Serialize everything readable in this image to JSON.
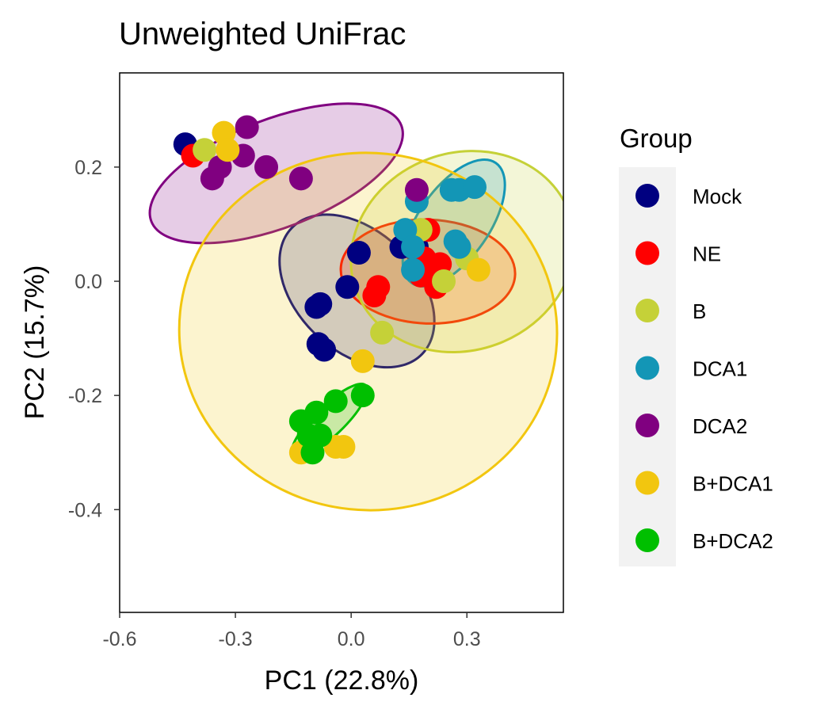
{
  "chart_data": {
    "type": "scatter",
    "title": "Unweighted UniFrac",
    "xlabel": "PC1 (22.8%)",
    "ylabel": "PC2 (15.7%)",
    "xlim": [
      -0.6,
      0.55
    ],
    "ylim": [
      -0.58,
      0.365
    ],
    "x_ticks": [
      -0.6,
      -0.3,
      0.0,
      0.3
    ],
    "x_tick_labels": [
      "-0.6",
      "-0.3",
      "0.0",
      "0.3"
    ],
    "y_ticks": [
      0.2,
      0.0,
      -0.2,
      -0.4
    ],
    "y_tick_labels": [
      "0.2",
      "0.0",
      "-0.2",
      "-0.4"
    ],
    "grid": false,
    "legend": {
      "title": "Group",
      "position": "right",
      "entries": [
        "Mock",
        "NE",
        "B",
        "DCA1",
        "DCA2",
        "B+DCA1",
        "B+DCA2"
      ]
    },
    "series": [
      {
        "name": "Mock",
        "color": "#000080",
        "ellipse": {
          "cx": 0.015,
          "cy": -0.017,
          "rx": 0.235,
          "ry": 0.105,
          "angle_deg": 44
        },
        "points": [
          [
            -0.43,
            0.24
          ],
          [
            0.02,
            0.05
          ],
          [
            0.13,
            0.06
          ],
          [
            0.17,
            0.06
          ],
          [
            -0.01,
            -0.01
          ],
          [
            -0.08,
            -0.04
          ],
          [
            -0.09,
            -0.045
          ],
          [
            -0.085,
            -0.11
          ],
          [
            -0.07,
            -0.12
          ]
        ]
      },
      {
        "name": "NE",
        "color": "#ff0000",
        "ellipse": {
          "cx": 0.199,
          "cy": 0.017,
          "rx": 0.226,
          "ry": 0.091,
          "angle_deg": 2
        },
        "points": [
          [
            -0.41,
            0.22
          ],
          [
            0.07,
            -0.01
          ],
          [
            0.06,
            -0.025
          ],
          [
            0.2,
            0.09
          ],
          [
            0.19,
            0.04
          ],
          [
            0.2,
            0.02
          ],
          [
            0.23,
            0.03
          ],
          [
            0.18,
            0.01
          ],
          [
            0.22,
            -0.01
          ]
        ]
      },
      {
        "name": "B",
        "color": "#c5d138",
        "ellipse": {
          "cx": 0.289,
          "cy": 0.052,
          "rx": 0.294,
          "ry": 0.173,
          "angle_deg": -20
        },
        "points": [
          [
            -0.38,
            0.23
          ],
          [
            0.18,
            0.09
          ],
          [
            0.3,
            0.04
          ],
          [
            0.24,
            0.0
          ],
          [
            0.08,
            -0.09
          ]
        ]
      },
      {
        "name": "DCA1",
        "color": "#1396b6",
        "ellipse": {
          "cx": 0.266,
          "cy": 0.102,
          "rx": 0.19,
          "ry": 0.062,
          "angle_deg": -55
        },
        "points": [
          [
            0.26,
            0.16
          ],
          [
            0.28,
            0.16
          ],
          [
            0.32,
            0.165
          ],
          [
            0.17,
            0.14
          ],
          [
            0.14,
            0.09
          ],
          [
            0.16,
            0.06
          ],
          [
            0.16,
            0.02
          ],
          [
            0.27,
            0.07
          ],
          [
            0.28,
            0.06
          ]
        ]
      },
      {
        "name": "DCA2",
        "color": "#800080",
        "ellipse": {
          "cx": -0.194,
          "cy": 0.189,
          "rx": 0.347,
          "ry": 0.095,
          "angle_deg": -21
        },
        "points": [
          [
            -0.27,
            0.27
          ],
          [
            -0.28,
            0.22
          ],
          [
            -0.22,
            0.2
          ],
          [
            -0.13,
            0.18
          ],
          [
            -0.34,
            0.2
          ],
          [
            -0.36,
            0.18
          ],
          [
            0.17,
            0.16
          ],
          [
            -0.11,
            -0.29
          ]
        ]
      },
      {
        "name": "B+DCA1",
        "color": "#f2c60f",
        "ellipse": {
          "cx": 0.044,
          "cy": -0.088,
          "rx": 0.463,
          "ry": 0.331,
          "angle_deg": -84
        },
        "points": [
          [
            -0.33,
            0.26
          ],
          [
            -0.32,
            0.23
          ],
          [
            0.33,
            0.02
          ],
          [
            0.03,
            -0.14
          ],
          [
            -0.13,
            -0.3
          ],
          [
            -0.04,
            -0.29
          ],
          [
            -0.02,
            -0.29
          ]
        ]
      },
      {
        "name": "B+DCA2",
        "color": "#00bf00",
        "ellipse": {
          "cx": -0.056,
          "cy": -0.244,
          "rx": 0.131,
          "ry": 0.026,
          "angle_deg": -44
        },
        "points": [
          [
            0.03,
            -0.2
          ],
          [
            -0.04,
            -0.21
          ],
          [
            -0.09,
            -0.23
          ],
          [
            -0.13,
            -0.245
          ],
          [
            -0.11,
            -0.27
          ],
          [
            -0.08,
            -0.27
          ],
          [
            -0.1,
            -0.3
          ]
        ]
      }
    ]
  }
}
